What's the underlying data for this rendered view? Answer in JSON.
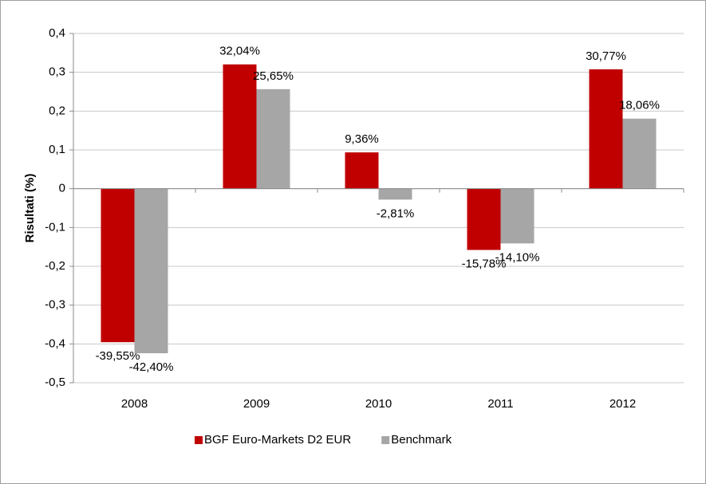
{
  "chart_data": {
    "type": "bar",
    "y_label": "Risultati (%)",
    "categories": [
      "2008",
      "2009",
      "2010",
      "2011",
      "2012"
    ],
    "series": [
      {
        "name": "BGF Euro-Markets D2 EUR",
        "color": "#c00000",
        "values": [
          -0.3955,
          0.3204,
          0.0936,
          -0.1578,
          0.3077
        ],
        "value_labels": [
          "-39,55%",
          "32,04%",
          "9,36%",
          "-15,78%",
          "30,77%"
        ]
      },
      {
        "name": "Benchmark",
        "color": "#a6a6a6",
        "values": [
          -0.424,
          0.2565,
          -0.0281,
          -0.141,
          0.1806
        ],
        "value_labels": [
          "-42,40%",
          "25,65%",
          "-2,81%",
          "-14,10%",
          "18,06%"
        ]
      }
    ],
    "ylim": [
      -0.5,
      0.4
    ],
    "yticks": [
      {
        "value": -0.5,
        "label": "-0,5"
      },
      {
        "value": -0.4,
        "label": "-0,4"
      },
      {
        "value": -0.3,
        "label": "-0,3"
      },
      {
        "value": -0.2,
        "label": "-0,2"
      },
      {
        "value": -0.1,
        "label": "-0,1"
      },
      0,
      {
        "value": 0.1,
        "label": "0,1"
      },
      {
        "value": 0.2,
        "label": "0,2"
      },
      {
        "value": 0.3,
        "label": "0,3"
      },
      {
        "value": 0.4,
        "label": "0,4"
      }
    ],
    "grid": true,
    "legend": "bottom"
  }
}
